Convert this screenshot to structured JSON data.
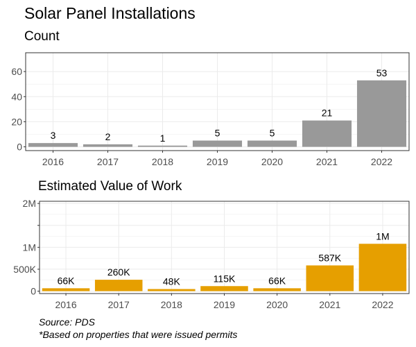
{
  "title": "Solar Panel Installations",
  "colors": {
    "count_bar": "#999999",
    "value_bar": "#E69F00",
    "grid": "#ebebeb",
    "border": "#333333"
  },
  "chart_data": [
    {
      "type": "bar",
      "title": "Count",
      "categories": [
        "2016",
        "2017",
        "2018",
        "2019",
        "2020",
        "2021",
        "2022"
      ],
      "values": [
        3,
        2,
        1,
        5,
        5,
        21,
        53
      ],
      "data_labels": [
        "3",
        "2",
        "1",
        "5",
        "5",
        "21",
        "53"
      ],
      "ylim": [
        -3,
        75
      ],
      "yticks": [
        0,
        20,
        40,
        60
      ],
      "ytick_labels": [
        "0",
        "20",
        "40",
        "60"
      ],
      "grid": true
    },
    {
      "type": "bar",
      "title": "Estimated Value of Work",
      "categories": [
        "2016",
        "2017",
        "2018",
        "2019",
        "2020",
        "2021",
        "2022"
      ],
      "values": [
        66000,
        260000,
        48000,
        115000,
        66000,
        587000,
        1080000
      ],
      "data_labels": [
        "66K",
        "260K",
        "48K",
        "115K",
        "66K",
        "587K",
        "1M"
      ],
      "ylim": [
        -55000,
        2050000
      ],
      "yticks": [
        0,
        500000,
        1000000,
        1500000,
        2000000
      ],
      "ytick_labels": [
        "0",
        "500K",
        "1M",
        "",
        "2M"
      ],
      "grid": true
    }
  ],
  "captions": {
    "source": "Source: PDS",
    "note": "*Based on properties that were issued permits"
  }
}
